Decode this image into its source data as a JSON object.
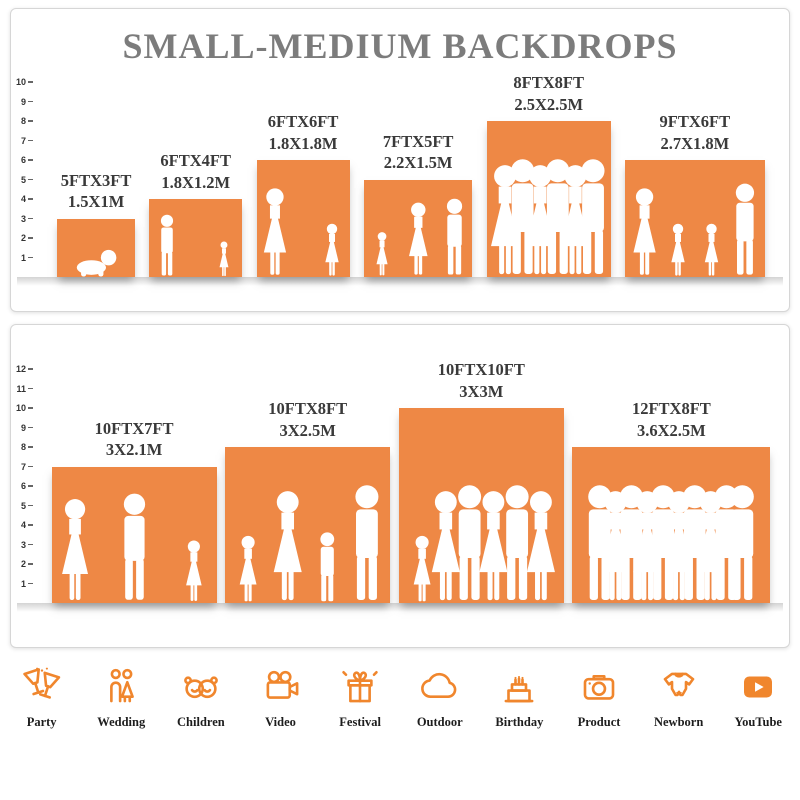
{
  "title": "SMALL-MEDIUM BACKDROPS",
  "colors": {
    "backdrop_orange": "#EE8845",
    "icon_orange": "#F0862D",
    "title_gray": "#7C7C7C",
    "label_dark": "#3A3A3A"
  },
  "panels": [
    {
      "name": "small-medium-sizes",
      "ruler_max": 10,
      "items": [
        {
          "size_ft": "5FTX3FT",
          "size_m": "1.5X1M",
          "width_ft": 5,
          "height_ft": 3,
          "silhouettes": [
            "baby"
          ]
        },
        {
          "size_ft": "6FTX4FT",
          "size_m": "1.8X1.2M",
          "width_ft": 6,
          "height_ft": 4,
          "silhouettes": [
            "man",
            "girl"
          ]
        },
        {
          "size_ft": "6FTX6FT",
          "size_m": "1.8X1.8M",
          "width_ft": 6,
          "height_ft": 6,
          "silhouettes": [
            "woman",
            "girl"
          ]
        },
        {
          "size_ft": "7FTX5FT",
          "size_m": "2.2X1.5M",
          "width_ft": 7,
          "height_ft": 5,
          "silhouettes": [
            "girl",
            "woman",
            "man"
          ]
        },
        {
          "size_ft": "8FTX8FT",
          "size_m": "2.5X2.5M",
          "width_ft": 8,
          "height_ft": 8,
          "silhouettes": [
            "woman",
            "man",
            "woman",
            "man",
            "woman",
            "man"
          ]
        },
        {
          "size_ft": "9FTX6FT",
          "size_m": "2.7X1.8M",
          "width_ft": 9,
          "height_ft": 6,
          "silhouettes": [
            "woman",
            "girl",
            "girl",
            "man"
          ]
        }
      ]
    },
    {
      "name": "large-sizes",
      "ruler_max": 12,
      "items": [
        {
          "size_ft": "10FTX7FT",
          "size_m": "3X2.1M",
          "width_ft": 10,
          "height_ft": 7,
          "silhouettes": [
            "woman",
            "man",
            "girl"
          ]
        },
        {
          "size_ft": "10FTX8FT",
          "size_m": "3X2.5M",
          "width_ft": 10,
          "height_ft": 8,
          "silhouettes": [
            "girl",
            "woman",
            "boy",
            "man"
          ]
        },
        {
          "size_ft": "10FTX10FT",
          "size_m": "3X3M",
          "width_ft": 10,
          "height_ft": 10,
          "silhouettes": [
            "girl",
            "woman",
            "man",
            "woman",
            "man",
            "woman"
          ]
        },
        {
          "size_ft": "12FTX8FT",
          "size_m": "3.6X2.5M",
          "width_ft": 12,
          "height_ft": 8,
          "silhouettes": [
            "man",
            "woman",
            "man",
            "woman",
            "man",
            "woman",
            "man",
            "woman",
            "man",
            "man"
          ]
        }
      ]
    }
  ],
  "categories": [
    {
      "icon": "party-icon",
      "label": "Party"
    },
    {
      "icon": "wedding-icon",
      "label": "Wedding"
    },
    {
      "icon": "children-icon",
      "label": "Children"
    },
    {
      "icon": "video-icon",
      "label": "Video"
    },
    {
      "icon": "festival-icon",
      "label": "Festival"
    },
    {
      "icon": "outdoor-icon",
      "label": "Outdoor"
    },
    {
      "icon": "birthday-icon",
      "label": "Birthday"
    },
    {
      "icon": "product-icon",
      "label": "Product"
    },
    {
      "icon": "newborn-icon",
      "label": "Newborn"
    },
    {
      "icon": "youtube-icon",
      "label": "YouTube"
    }
  ]
}
